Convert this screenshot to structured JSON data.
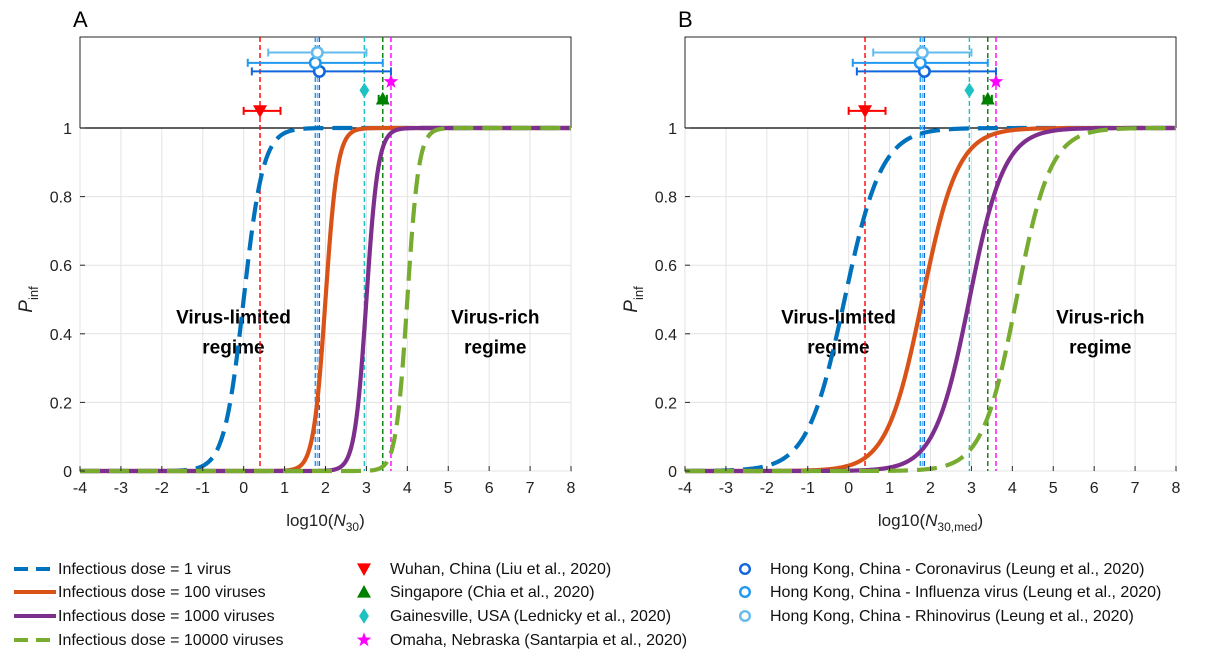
{
  "chart_data": [
    {
      "panel": "A",
      "type": "line",
      "xlabel": "log10(N30)",
      "xlabel_parts": {
        "base": "log10(",
        "italic": "N",
        "sub": "30",
        "close": ")"
      },
      "ylabel": "Pinf",
      "ylabel_parts": {
        "italic": "P",
        "sub": "inf"
      },
      "xlim": [
        -4,
        8
      ],
      "ylim": [
        0,
        1
      ],
      "xticks": [
        "-4",
        "-3",
        "-2",
        "-1",
        "0",
        "1",
        "2",
        "3",
        "4",
        "5",
        "6",
        "7",
        "8"
      ],
      "yticks": [
        "0",
        "0.2",
        "0.4",
        "0.6",
        "0.8",
        "1"
      ],
      "grid": true,
      "regimes": [
        {
          "lines": [
            "Virus-limited",
            "regime"
          ],
          "x": -0.25,
          "y": 0.43
        },
        {
          "lines": [
            "Virus-rich",
            "regime"
          ],
          "x": 6.15,
          "y": 0.43
        }
      ],
      "series": [
        {
          "name": "Infectious dose = 1 virus",
          "center": 0.0,
          "steepness": 4.2,
          "dash": true,
          "color": "#0072bd"
        },
        {
          "name": "Infectious dose = 100 viruses",
          "center": 2.0,
          "steepness": 6.8,
          "dash": false,
          "color": "#d95319"
        },
        {
          "name": "Infectious dose = 1000 viruses",
          "center": 3.0,
          "steepness": 7.0,
          "dash": false,
          "color": "#7e2f8e"
        },
        {
          "name": "Infectious dose = 10000 viruses",
          "center": 4.0,
          "steepness": 7.2,
          "dash": true,
          "color": "#77ac30"
        }
      ]
    },
    {
      "panel": "B",
      "type": "line",
      "xlabel": "log10(N30,med)",
      "xlabel_parts": {
        "base": "log10(",
        "italic": "N",
        "sub": "30,med",
        "close": ")"
      },
      "ylabel": "Pinf",
      "ylabel_parts": {
        "italic": "P",
        "sub": "inf"
      },
      "xlim": [
        -4,
        8
      ],
      "ylim": [
        0,
        1
      ],
      "xticks": [
        "-4",
        "-3",
        "-2",
        "-1",
        "0",
        "1",
        "2",
        "3",
        "4",
        "5",
        "6",
        "7",
        "8"
      ],
      "yticks": [
        "0",
        "0.2",
        "0.4",
        "0.6",
        "0.8",
        "1"
      ],
      "grid": true,
      "regimes": [
        {
          "lines": [
            "Virus-limited",
            "regime"
          ],
          "x": -0.25,
          "y": 0.43
        },
        {
          "lines": [
            "Virus-rich",
            "regime"
          ],
          "x": 6.15,
          "y": 0.43
        }
      ],
      "series": [
        {
          "name": "Infectious dose = 1 virus",
          "center": -0.1,
          "steepness": 2.2,
          "dash": true,
          "color": "#0072bd"
        },
        {
          "name": "Infectious dose = 100 viruses",
          "center": 1.8,
          "steepness": 2.3,
          "dash": false,
          "color": "#d95319"
        },
        {
          "name": "Infectious dose = 1000 viruses",
          "center": 2.95,
          "steepness": 2.35,
          "dash": false,
          "color": "#7e2f8e"
        },
        {
          "name": "Infectious dose = 10000 viruses",
          "center": 4.1,
          "steepness": 2.4,
          "dash": true,
          "color": "#77ac30"
        }
      ]
    }
  ],
  "observations": [
    {
      "name": "Wuhan, China (Liu et al., 2020)",
      "x": 0.4,
      "err": [
        0.0,
        0.9
      ],
      "y": 1.05,
      "marker": "triangle-down",
      "color": "#ff0000"
    },
    {
      "name": "Singapore (Chia et al., 2020)",
      "x": 3.4,
      "err": [
        3.3,
        3.5
      ],
      "y": 1.085,
      "marker": "triangle-up",
      "color": "#008000"
    },
    {
      "name": "Gainesville, USA (Lednicky et al., 2020)",
      "x": 2.95,
      "err": null,
      "y": 1.11,
      "marker": "diamond",
      "color": "#1fc2c2"
    },
    {
      "name": "Omaha, Nebraska (Santarpia et al., 2020)",
      "x": 3.6,
      "err": null,
      "y": 1.135,
      "marker": "star",
      "color": "#ff00ff"
    },
    {
      "name": "Hong Kong, China - Coronavirus (Leung et al., 2020)",
      "x": 1.85,
      "err": [
        0.2,
        3.6
      ],
      "y": 1.165,
      "marker": "circle",
      "color": "#1166dd"
    },
    {
      "name": "Hong Kong, China - Influenza virus (Leung et al., 2020)",
      "x": 1.75,
      "err": [
        0.1,
        3.4
      ],
      "y": 1.19,
      "marker": "circle",
      "color": "#2299ee"
    },
    {
      "name": "Hong Kong, China - Rhinovirus (Leung et al., 2020)",
      "x": 1.8,
      "err": [
        0.6,
        3.0
      ],
      "y": 1.22,
      "marker": "circle",
      "color": "#66bbee"
    }
  ],
  "legend": {
    "placement": "bottom",
    "lines": [
      {
        "label": "Infectious dose = 1 virus",
        "color": "#0072bd",
        "dash": true
      },
      {
        "label": "Infectious dose = 100 viruses",
        "color": "#d95319",
        "dash": false
      },
      {
        "label": "Infectious dose = 1000 viruses",
        "color": "#7e2f8e",
        "dash": false
      },
      {
        "label": "Infectious dose = 10000 viruses",
        "color": "#77ac30",
        "dash": true
      }
    ],
    "markers": [
      {
        "label": "Wuhan, China (Liu et al., 2020)",
        "marker": "triangle-down",
        "color": "#ff0000"
      },
      {
        "label": "Singapore (Chia et al., 2020)",
        "marker": "triangle-up",
        "color": "#008000"
      },
      {
        "label": "Gainesville, USA (Lednicky et al., 2020)",
        "marker": "diamond",
        "color": "#1fc2c2"
      },
      {
        "label": "Omaha, Nebraska (Santarpia et al., 2020)",
        "marker": "star",
        "color": "#ff00ff"
      }
    ],
    "circles": [
      {
        "label": "Hong Kong, China - Coronavirus (Leung et al., 2020)",
        "color": "#1166dd"
      },
      {
        "label": "Hong Kong, China - Influenza virus (Leung et al., 2020)",
        "color": "#2299ee"
      },
      {
        "label": "Hong Kong, China - Rhinovirus (Leung et al., 2020)",
        "color": "#66bbee"
      }
    ]
  }
}
